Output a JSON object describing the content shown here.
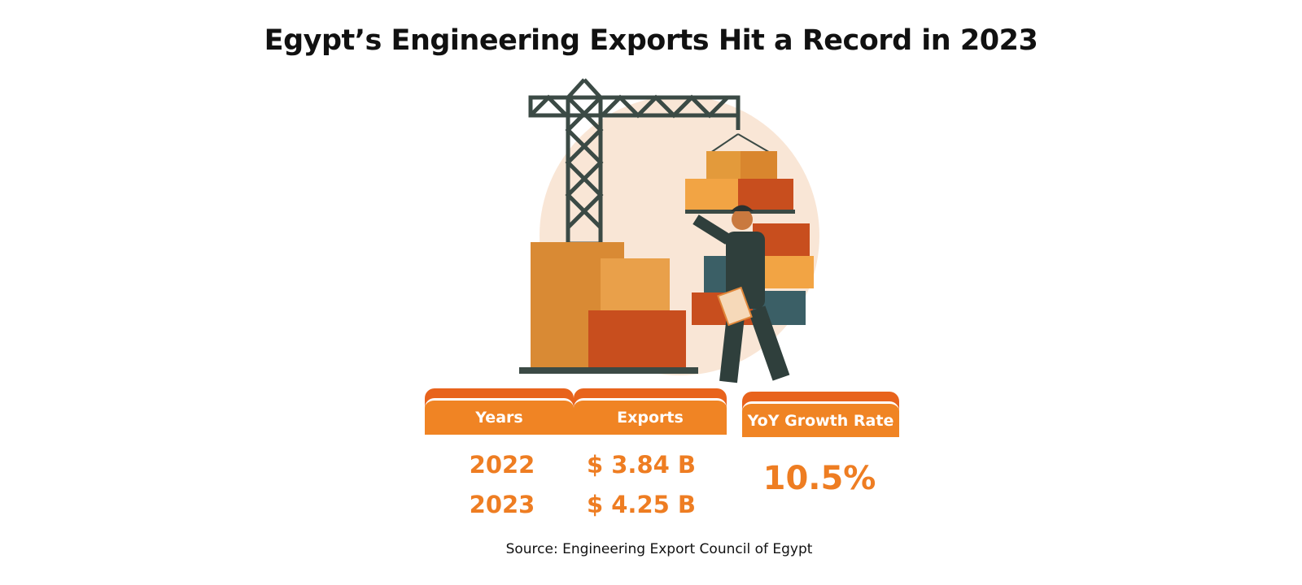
{
  "title": "Egypt’s Engineering Exports Hit a Record in 2023",
  "table": {
    "headers": [
      "Years",
      "Exports",
      "YoY Growth Rate"
    ],
    "rows": [
      {
        "year": "2022",
        "exports": "$ 3.84 B"
      },
      {
        "year": "2023",
        "exports": "$ 4.25 B"
      }
    ],
    "growth": "10.5%"
  },
  "source": "Source: Engineering Export Council of Egypt",
  "colors": {
    "accent": "#f08424",
    "accent_dark": "#e8631c",
    "value_text": "#ee7d22",
    "crane": "#3b4a45"
  }
}
